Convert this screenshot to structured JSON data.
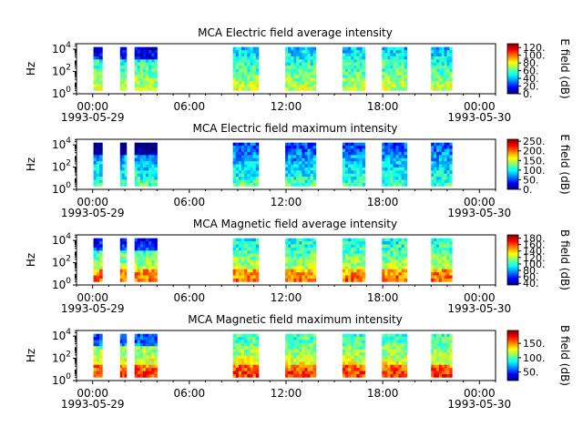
{
  "colors": {
    "colormap": [
      "#00007f",
      "#0000ff",
      "#0080ff",
      "#00ffff",
      "#80ff80",
      "#ffff00",
      "#ff8000",
      "#ff0000",
      "#7f0000"
    ],
    "axis": "#000000"
  },
  "chart_data": [
    {
      "type": "heatmap",
      "title": "MCA  Electric field average intensity",
      "ylabel": "Hz",
      "x_tick_labels": [
        "00:00",
        "06:00",
        "12:00",
        "18:00",
        "00:00"
      ],
      "x_tick_hours": [
        0,
        6,
        12,
        18,
        24
      ],
      "x_date_labels": [
        "1993-05-29",
        "1993-05-30"
      ],
      "xlim": [
        "1993-05-28 23:00",
        "1993-05-30 01:00"
      ],
      "y_ticks": [
        {
          "base": "10",
          "exp": "0",
          "log": 0
        },
        {
          "base": "10",
          "exp": "2",
          "log": 2
        },
        {
          "base": "10",
          "exp": "4",
          "log": 4
        }
      ],
      "ylim_log10": [
        0,
        4.5
      ],
      "y_scale": "log",
      "colorbar": {
        "label": "E field (dB)",
        "ticks": [
          "0.",
          "20.",
          "40.",
          "60.",
          "80.",
          "100.",
          "120."
        ],
        "range": [
          0,
          130
        ]
      },
      "segments_hours": [
        [
          0.05,
          0.6
        ],
        [
          1.7,
          2.1
        ],
        [
          2.6,
          4.0
        ],
        [
          8.7,
          10.3
        ],
        [
          11.95,
          13.85
        ],
        [
          15.5,
          16.9
        ],
        [
          17.95,
          19.5
        ],
        [
          21.0,
          22.3
        ]
      ],
      "base_level": 0.45
    },
    {
      "type": "heatmap",
      "title": "MCA  Electric field maximum intensity",
      "ylabel": "Hz",
      "x_tick_labels": [
        "00:00",
        "06:00",
        "12:00",
        "18:00",
        "00:00"
      ],
      "x_tick_hours": [
        0,
        6,
        12,
        18,
        24
      ],
      "x_date_labels": [
        "1993-05-29",
        "1993-05-30"
      ],
      "xlim": [
        "1993-05-28 23:00",
        "1993-05-30 01:00"
      ],
      "y_ticks": [
        {
          "base": "10",
          "exp": "0",
          "log": 0
        },
        {
          "base": "10",
          "exp": "2",
          "log": 2
        },
        {
          "base": "10",
          "exp": "4",
          "log": 4
        }
      ],
      "ylim_log10": [
        0,
        4.5
      ],
      "y_scale": "log",
      "colorbar": {
        "label": "E field (dB)",
        "ticks": [
          "0.",
          "50.",
          "100.",
          "150.",
          "200.",
          "250."
        ],
        "range": [
          0,
          260
        ]
      },
      "segments_hours": [
        [
          0.05,
          0.6
        ],
        [
          1.7,
          2.1
        ],
        [
          2.6,
          4.0
        ],
        [
          8.7,
          10.3
        ],
        [
          11.95,
          13.85
        ],
        [
          15.5,
          16.9
        ],
        [
          17.95,
          19.5
        ],
        [
          21.0,
          22.3
        ]
      ],
      "base_level": 0.32
    },
    {
      "type": "heatmap",
      "title": "MCA  Magnetic field average intensity",
      "ylabel": "Hz",
      "x_tick_labels": [
        "00:00",
        "06:00",
        "12:00",
        "18:00",
        "00:00"
      ],
      "x_tick_hours": [
        0,
        6,
        12,
        18,
        24
      ],
      "x_date_labels": [
        "1993-05-29",
        "1993-05-30"
      ],
      "xlim": [
        "1993-05-28 23:00",
        "1993-05-30 01:00"
      ],
      "y_ticks": [
        {
          "base": "10",
          "exp": "0",
          "log": 0
        },
        {
          "base": "10",
          "exp": "2",
          "log": 2
        },
        {
          "base": "10",
          "exp": "4",
          "log": 4
        }
      ],
      "ylim_log10": [
        0,
        4.5
      ],
      "y_scale": "log",
      "colorbar": {
        "label": "B field (dB)",
        "ticks": [
          "40.",
          "60.",
          "80.",
          "100.",
          "120.",
          "140.",
          "160.",
          "180."
        ],
        "range": [
          35,
          190
        ]
      },
      "segments_hours": [
        [
          0.05,
          0.6
        ],
        [
          1.7,
          2.1
        ],
        [
          2.6,
          4.0
        ],
        [
          8.7,
          10.3
        ],
        [
          11.95,
          13.85
        ],
        [
          15.5,
          16.9
        ],
        [
          17.95,
          19.5
        ],
        [
          21.0,
          22.3
        ]
      ],
      "base_level": 0.5
    },
    {
      "type": "heatmap",
      "title": "MCA  Magnetic field maximum intensity",
      "ylabel": "Hz",
      "x_tick_labels": [
        "00:00",
        "06:00",
        "12:00",
        "18:00",
        "00:00"
      ],
      "x_tick_hours": [
        0,
        6,
        12,
        18,
        24
      ],
      "x_date_labels": [
        "1993-05-29",
        "1993-05-30"
      ],
      "xlim": [
        "1993-05-28 23:00",
        "1993-05-30 01:00"
      ],
      "y_ticks": [
        {
          "base": "10",
          "exp": "0",
          "log": 0
        },
        {
          "base": "10",
          "exp": "2",
          "log": 2
        },
        {
          "base": "10",
          "exp": "4",
          "log": 4
        }
      ],
      "ylim_log10": [
        0,
        4.5
      ],
      "y_scale": "log",
      "colorbar": {
        "label": "B field (dB)",
        "ticks": [
          "50.",
          "100.",
          "150."
        ],
        "range": [
          20,
          195
        ]
      },
      "segments_hours": [
        [
          0.05,
          0.6
        ],
        [
          1.7,
          2.1
        ],
        [
          2.6,
          4.0
        ],
        [
          8.7,
          10.3
        ],
        [
          11.95,
          13.85
        ],
        [
          15.5,
          16.9
        ],
        [
          17.95,
          19.5
        ],
        [
          21.0,
          22.3
        ]
      ],
      "base_level": 0.55
    }
  ]
}
